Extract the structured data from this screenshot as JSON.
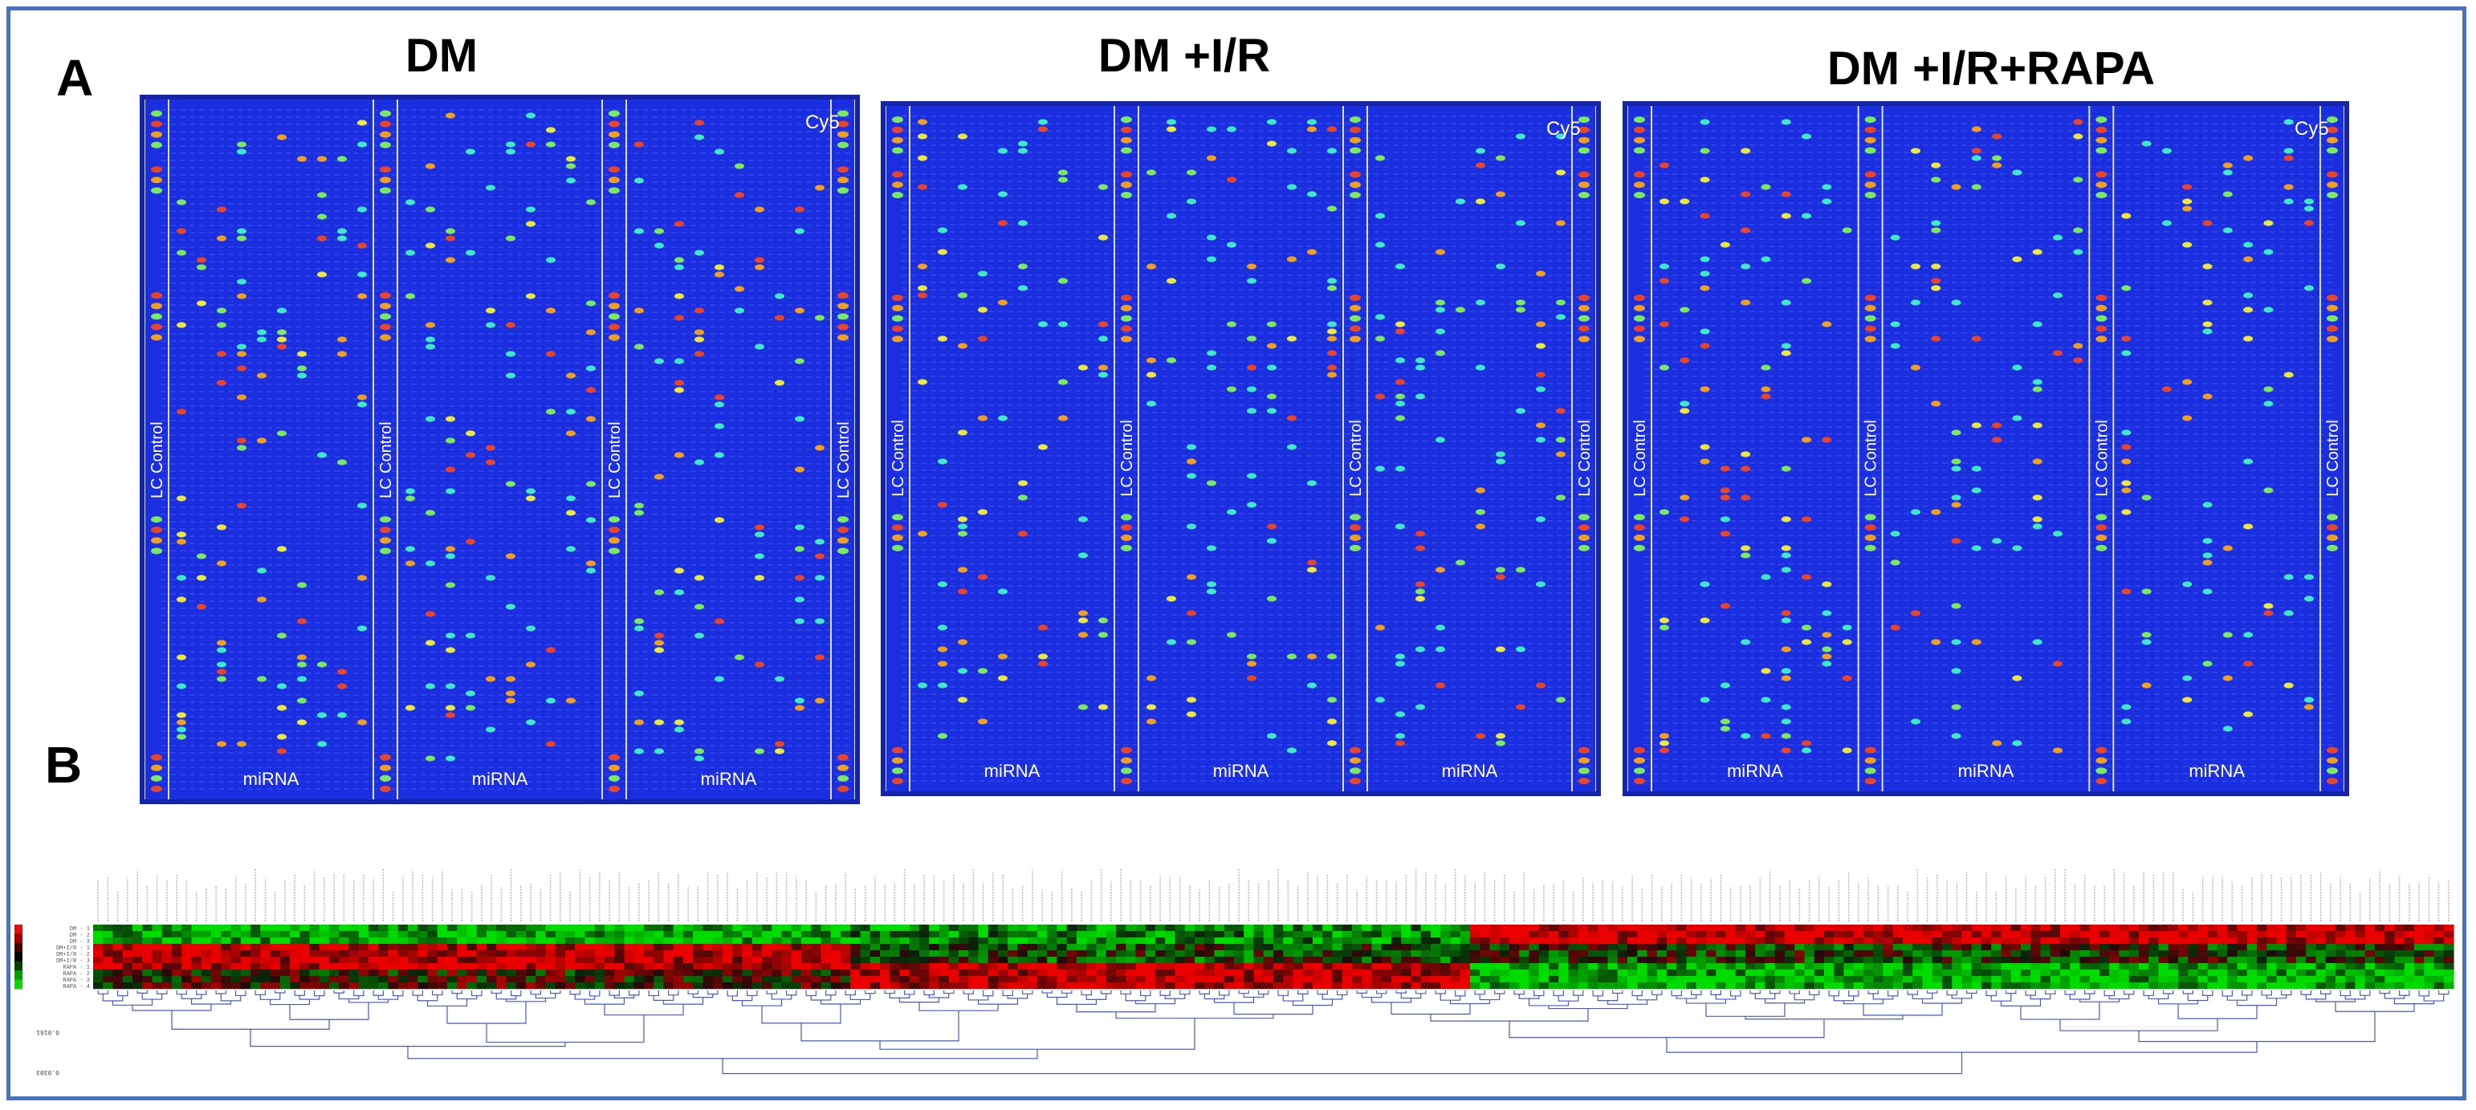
{
  "figure": {
    "panel_a_label": "A",
    "panel_b_label": "B",
    "arrays": [
      {
        "title": "DM",
        "corner_label": "Cy5",
        "lc_label": "LC Control",
        "mirna_label": "miRNA"
      },
      {
        "title": "DM +I/R",
        "corner_label": "Cy5",
        "lc_label": "LC Control",
        "mirna_label": "miRNA"
      },
      {
        "title": "DM +I/R+RAPA",
        "corner_label": "Cy5",
        "lc_label": "LC Control",
        "mirna_label": "miRNA"
      }
    ],
    "heatmap": {
      "row_labels": [
        "DM - 1",
        "DM - 2",
        "DM - 3",
        "DM+I/R - 1",
        "DM+I/R - 2",
        "DM+I/R - 3",
        "RAPA - 1",
        "RAPA - 2",
        "RAPA - 3",
        "RAPA - 4"
      ],
      "scale_labels": [
        "0.0161",
        "0.0383",
        "0.0690"
      ],
      "colors": {
        "high": "#e01010",
        "mid": "#000000",
        "low": "#12d012",
        "dendrogram": "#4a58c8"
      }
    },
    "colors": {
      "array_bg": "#1b2ee0",
      "frame_border": "#4a72c4",
      "spot_red": "#e8462a",
      "spot_orange": "#f0a020",
      "spot_yellow": "#e8e840",
      "spot_cyan": "#40e8c8",
      "spot_green": "#7ce860"
    }
  }
}
